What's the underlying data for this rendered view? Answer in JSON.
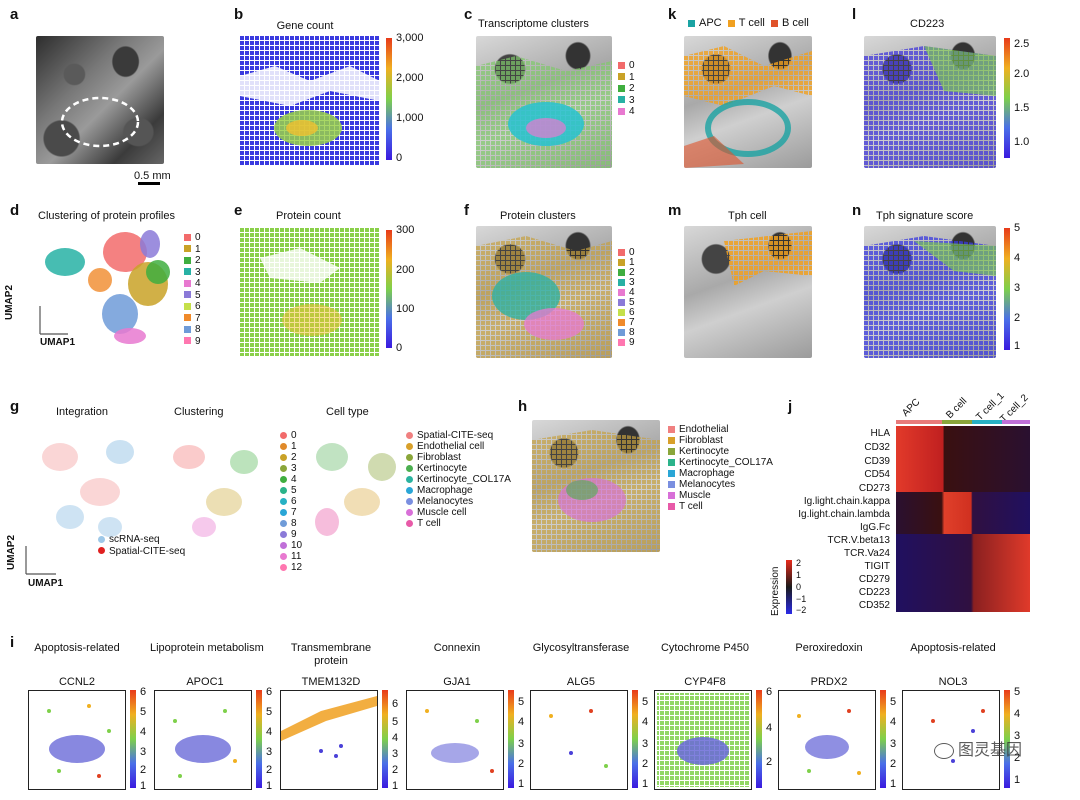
{
  "panels": {
    "a": {
      "label": "a",
      "scalebar": "0.5 mm"
    },
    "b": {
      "label": "b",
      "title": "Gene count",
      "ticks": [
        "3,000",
        "2,000",
        "1,000",
        "0"
      ]
    },
    "c": {
      "label": "c",
      "title": "Transcriptome clusters",
      "legend": [
        "0",
        "1",
        "2",
        "3",
        "4"
      ]
    },
    "k": {
      "label": "k",
      "legend": [
        "APC",
        "T cell",
        "B cell"
      ]
    },
    "l": {
      "label": "l",
      "title": "CD223",
      "ticks": [
        "2.5",
        "2.0",
        "1.5",
        "1.0"
      ]
    },
    "d": {
      "label": "d",
      "title": "Clustering of protein profiles",
      "legend": [
        "0",
        "1",
        "2",
        "3",
        "4",
        "5",
        "6",
        "7",
        "8",
        "9"
      ],
      "xaxis": "UMAP1",
      "yaxis": "UMAP2"
    },
    "e": {
      "label": "e",
      "title": "Protein count",
      "ticks": [
        "300",
        "200",
        "100",
        "0"
      ]
    },
    "f": {
      "label": "f",
      "title": "Protein clusters",
      "legend": [
        "0",
        "1",
        "2",
        "3",
        "4",
        "5",
        "6",
        "7",
        "8",
        "9"
      ]
    },
    "m": {
      "label": "m",
      "title": "Tph cell"
    },
    "n": {
      "label": "n",
      "title": "Tph signature score",
      "ticks": [
        "5",
        "4",
        "3",
        "2",
        "1"
      ]
    },
    "g": {
      "label": "g",
      "titles": [
        "Integration",
        "Clustering",
        "Cell type"
      ],
      "legend_integration": [
        "scRNA-seq",
        "Spatial-CITE-seq"
      ],
      "legend_clusters": [
        "0",
        "1",
        "2",
        "3",
        "4",
        "5",
        "6",
        "7",
        "8",
        "9",
        "10",
        "11",
        "12"
      ],
      "legend_celltype": [
        "Spatial-CITE-seq",
        "Endothelial cell",
        "Fibroblast",
        "Kertinocyte",
        "Kertinocyte_COL17A",
        "Macrophage",
        "Melanocytes",
        "Muscle cell",
        "T cell"
      ],
      "xaxis": "UMAP1",
      "yaxis": "UMAP2"
    },
    "h": {
      "label": "h",
      "legend": [
        "Endothelial",
        "Fibroblast",
        "Kertinocyte",
        "Kertinocyte_COL17A",
        "Macrophage",
        "Melanocytes",
        "Muscle",
        "T cell"
      ]
    },
    "j": {
      "label": "j",
      "columns": [
        "APC",
        "B cell",
        "T cell_1",
        "T cell_2"
      ],
      "rows": [
        "HLA",
        "CD32",
        "CD39",
        "CD54",
        "CD273",
        "Ig.light.chain.kappa",
        "Ig.light.chain.lambda",
        "IgG.Fc",
        "TCR.V.beta13",
        "TCR.Va24",
        "TIGIT",
        "CD279",
        "CD223",
        "CD352"
      ],
      "colorbar_label": "Expression",
      "colorbar_ticks": [
        "2",
        "1",
        "0",
        "−1",
        "−2"
      ]
    },
    "i": {
      "label": "i",
      "genes": [
        {
          "category": "Apoptosis-related",
          "name": "CCNL2",
          "ticks": [
            "6",
            "5",
            "4",
            "3",
            "2",
            "1"
          ]
        },
        {
          "category": "Lipoprotein metabolism",
          "name": "APOC1",
          "ticks": [
            "6",
            "5",
            "4",
            "3",
            "2",
            "1"
          ]
        },
        {
          "category": "Transmembrane protein",
          "name": "TMEM132D",
          "ticks": [
            "6",
            "5",
            "4",
            "3",
            "2",
            "1"
          ]
        },
        {
          "category": "Connexin",
          "name": "GJA1",
          "ticks": [
            "5",
            "4",
            "3",
            "2",
            "1"
          ]
        },
        {
          "category": "Glycosyltransferase",
          "name": "ALG5",
          "ticks": [
            "5",
            "4",
            "3",
            "2",
            "1"
          ]
        },
        {
          "category": "Cytochrome P450",
          "name": "CYP4F8",
          "ticks": [
            "6",
            "4",
            "2"
          ]
        },
        {
          "category": "Peroxiredoxin",
          "name": "PRDX2",
          "ticks": [
            "5",
            "4",
            "3",
            "2",
            "1"
          ]
        },
        {
          "category": "Apoptosis-related",
          "name": "NOL3",
          "ticks": [
            "5",
            "4",
            "3",
            "2",
            "1"
          ]
        }
      ]
    }
  },
  "watermark": "图灵基因",
  "colors": {
    "clusters": [
      "#f26b6b",
      "#c9a227",
      "#3fae3f",
      "#27b1a4",
      "#e879d0",
      "#8b7ad8",
      "#c5e04a",
      "#f08a2a",
      "#6f9bd8",
      "#ff77b0"
    ],
    "k": [
      "#1aa3a3",
      "#f0a020",
      "#e0522a"
    ],
    "celltype": [
      "#f08080",
      "#d8a02a",
      "#8aa63a",
      "#4caf50",
      "#2bb3a0",
      "#2aa6d6",
      "#7a8fe0",
      "#d870d8",
      "#e85aa8"
    ]
  }
}
